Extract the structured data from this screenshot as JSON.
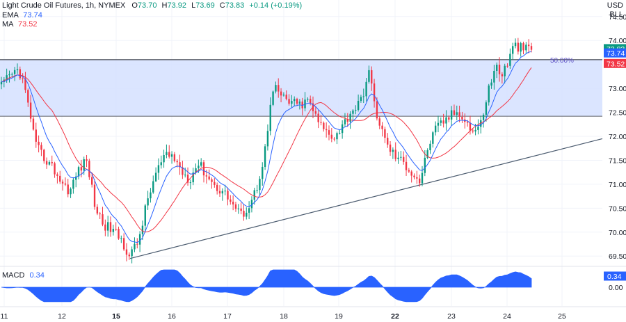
{
  "header": {
    "symbol": "Light Crude Oil Futures, 1h, NYMEX",
    "o_label": "O",
    "o_value": "73.70",
    "h_label": "H",
    "h_value": "73.92",
    "l_label": "L",
    "l_value": "73.69",
    "c_label": "C",
    "c_value": "73.83",
    "change": "+0.14 (+0.19%)",
    "ema_label": "EMA",
    "ema_value": "73.74",
    "ma_label": "MA",
    "ma_value": "73.52",
    "currency": "USD",
    "unit": "BLL"
  },
  "macd": {
    "label": "MACD",
    "value": "0.34",
    "zero_label": "0.00",
    "badge": "0.34"
  },
  "colors": {
    "up": "#089981",
    "down": "#f23645",
    "ema": "#2962ff",
    "ma": "#f23645",
    "zone": "#d5e0ff",
    "macd": "#2962ff",
    "trend": "#4a5a6e"
  },
  "chart_data": {
    "type": "candlestick",
    "price_axis": {
      "ticks": [
        "74.50",
        "74.00",
        "73.50",
        "73.00",
        "72.50",
        "72.00",
        "71.50",
        "71.00",
        "70.50",
        "70.00",
        "69.50"
      ],
      "range": [
        69.3,
        74.7
      ]
    },
    "time_axis": {
      "labels": [
        "11",
        "12",
        "15",
        "16",
        "17",
        "18",
        "19",
        "22",
        "23",
        "24",
        "25"
      ],
      "bold": [
        "15",
        "22"
      ]
    },
    "badges": {
      "close": "73.83",
      "ema": "73.74",
      "ma": "73.52"
    },
    "fib_label": "50.00%",
    "zone": {
      "top": 73.6,
      "bottom": 72.42
    },
    "resistance_level": 73.6,
    "trendline": {
      "from": {
        "t": 15.9,
        "price": 69.45
      },
      "to": {
        "t": 24.8,
        "price": 71.95
      }
    },
    "series_path": [
      [
        11.0,
        73.05
      ],
      [
        11.2,
        73.25
      ],
      [
        11.4,
        73.4
      ],
      [
        11.5,
        73.15
      ],
      [
        11.7,
        72.35
      ],
      [
        11.8,
        71.8
      ],
      [
        12.0,
        71.55
      ],
      [
        12.2,
        71.35
      ],
      [
        12.4,
        71.05
      ],
      [
        12.6,
        70.85
      ],
      [
        12.8,
        71.3
      ],
      [
        13.0,
        71.5
      ],
      [
        13.2,
        70.5
      ],
      [
        13.4,
        70.15
      ],
      [
        13.6,
        70.05
      ],
      [
        13.8,
        69.85
      ],
      [
        14.0,
        69.5
      ],
      [
        14.2,
        69.8
      ],
      [
        14.4,
        70.6
      ],
      [
        14.6,
        71.2
      ],
      [
        14.8,
        71.55
      ],
      [
        15.0,
        71.6
      ],
      [
        15.2,
        71.3
      ],
      [
        15.4,
        71.1
      ],
      [
        15.6,
        71.45
      ],
      [
        15.8,
        71.2
      ],
      [
        16.0,
        70.95
      ],
      [
        16.2,
        70.85
      ],
      [
        16.4,
        70.6
      ],
      [
        16.6,
        70.35
      ],
      [
        16.8,
        70.55
      ],
      [
        17.0,
        71.0
      ],
      [
        17.2,
        71.85
      ],
      [
        17.3,
        72.7
      ],
      [
        17.4,
        73.0
      ],
      [
        17.6,
        72.8
      ],
      [
        17.8,
        72.7
      ],
      [
        18.0,
        72.65
      ],
      [
        18.2,
        72.75
      ],
      [
        18.4,
        72.3
      ],
      [
        18.6,
        72.1
      ],
      [
        18.8,
        72.0
      ],
      [
        19.0,
        72.25
      ],
      [
        19.2,
        72.55
      ],
      [
        19.4,
        72.7
      ],
      [
        19.6,
        73.35
      ],
      [
        19.7,
        72.8
      ],
      [
        19.8,
        72.4
      ],
      [
        20.0,
        71.85
      ],
      [
        20.2,
        71.6
      ],
      [
        20.4,
        71.45
      ],
      [
        20.6,
        71.25
      ],
      [
        20.8,
        71.05
      ],
      [
        21.0,
        71.85
      ],
      [
        21.2,
        72.2
      ],
      [
        21.4,
        72.35
      ],
      [
        21.6,
        72.5
      ],
      [
        21.8,
        72.45
      ],
      [
        22.0,
        72.1
      ],
      [
        22.2,
        72.2
      ],
      [
        22.4,
        73.0
      ],
      [
        22.6,
        73.5
      ],
      [
        22.7,
        73.25
      ],
      [
        22.8,
        73.45
      ],
      [
        23.0,
        73.9
      ],
      [
        23.2,
        73.82
      ],
      [
        23.4,
        73.83
      ]
    ],
    "candle_count": 200,
    "macd_range": [
      -0.5,
      0.6
    ]
  }
}
